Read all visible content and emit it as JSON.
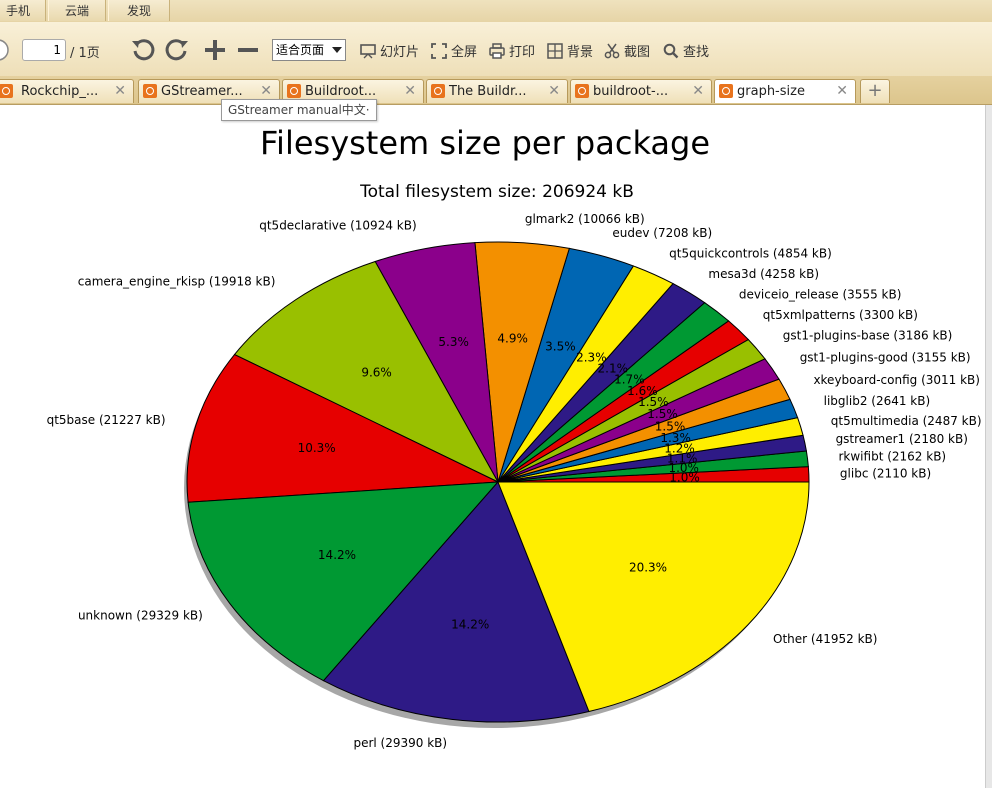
{
  "shell": {
    "tabs": [
      "手机",
      "云端",
      "发现"
    ]
  },
  "toolbar": {
    "page_value": "1",
    "page_total": "/ 1页",
    "fit_value": "适合页面",
    "slideshow": "幻灯片",
    "fullscreen": "全屏",
    "print": "打印",
    "background": "背景",
    "screenshot": "截图",
    "find": "查找"
  },
  "doc_tabs": [
    {
      "label": "Rockchip_...",
      "close": "✕",
      "active": false
    },
    {
      "label": "GStreamer...",
      "close": "✕",
      "active": false
    },
    {
      "label": "Buildroot...",
      "close": "✕",
      "active": false
    },
    {
      "label": "The Buildr...",
      "close": "✕",
      "active": false
    },
    {
      "label": "buildroot-...",
      "close": "✕",
      "active": false
    },
    {
      "label": "graph-size",
      "close": "✕",
      "active": true
    }
  ],
  "add_tab": "+",
  "tooltip": "GStreamer manual中文·",
  "chart_data": {
    "type": "pie",
    "title": "Filesystem size per package",
    "subtitle": "Total filesystem size: 206924 kB",
    "slices": [
      {
        "label": "glibc (2110 kB)",
        "value": 2110,
        "pct": "1.0%",
        "color": "#e60000"
      },
      {
        "label": "rkwifibt (2162 kB)",
        "value": 2162,
        "pct": "1.0%",
        "color": "#009933"
      },
      {
        "label": "gstreamer1 (2180 kB)",
        "value": 2180,
        "pct": "1.1%",
        "color": "#2e1a86"
      },
      {
        "label": "qt5multimedia (2487 kB)",
        "value": 2487,
        "pct": "1.2%",
        "color": "#ffee00"
      },
      {
        "label": "libglib2 (2641 kB)",
        "value": 2641,
        "pct": "1.3%",
        "color": "#0066b3"
      },
      {
        "label": "xkeyboard-config (3011 kB)",
        "value": 3011,
        "pct": "1.5%",
        "color": "#f39000"
      },
      {
        "label": "gst1-plugins-good (3155 kB)",
        "value": 3155,
        "pct": "1.5%",
        "color": "#8b008b"
      },
      {
        "label": "gst1-plugins-base (3186 kB)",
        "value": 3186,
        "pct": "1.5%",
        "color": "#99c000"
      },
      {
        "label": "qt5xmlpatterns (3300 kB)",
        "value": 3300,
        "pct": "1.6%",
        "color": "#e60000"
      },
      {
        "label": "deviceio_release (3555 kB)",
        "value": 3555,
        "pct": "1.7%",
        "color": "#009933"
      },
      {
        "label": "mesa3d (4258 kB)",
        "value": 4258,
        "pct": "2.1%",
        "color": "#2e1a86"
      },
      {
        "label": "qt5quickcontrols (4854 kB)",
        "value": 4854,
        "pct": "2.3%",
        "color": "#ffee00"
      },
      {
        "label": "eudev (7208 kB)",
        "value": 7208,
        "pct": "3.5%",
        "color": "#0066b3"
      },
      {
        "label": "glmark2 (10066 kB)",
        "value": 10066,
        "pct": "4.9%",
        "color": "#f39000"
      },
      {
        "label": "qt5declarative (10924 kB)",
        "value": 10924,
        "pct": "5.3%",
        "color": "#8b008b"
      },
      {
        "label": "camera_engine_rkisp (19918 kB)",
        "value": 19918,
        "pct": "9.6%",
        "color": "#99c000"
      },
      {
        "label": "qt5base (21227 kB)",
        "value": 21227,
        "pct": "10.3%",
        "color": "#e60000"
      },
      {
        "label": "unknown (29329 kB)",
        "value": 29329,
        "pct": "14.2%",
        "color": "#009933"
      },
      {
        "label": "perl (29390 kB)",
        "value": 29390,
        "pct": "14.2%",
        "color": "#2e1a86"
      },
      {
        "label": "Other (41952 kB)",
        "value": 41952,
        "pct": "20.3%",
        "color": "#ffee00"
      }
    ]
  }
}
